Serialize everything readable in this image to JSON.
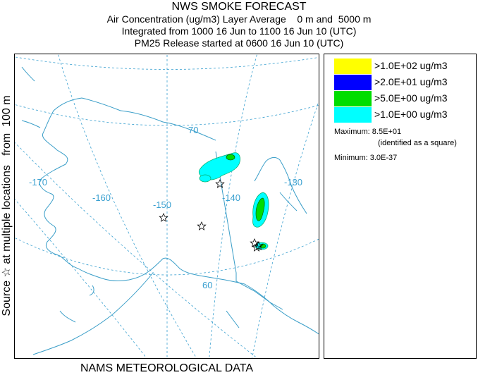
{
  "titles": {
    "main": "NWS SMOKE FORECAST",
    "line1": "Air Concentration (ug/m3) Layer Average    0 m and  5000 m",
    "line2": "Integrated from 1000 16 Jun to 1100 16 Jun 10 (UTC)",
    "line3": "PM25 Release started at 0600 16 Jun 10 (UTC)"
  },
  "side_label": "Source ☆ at multiple locations   from  100 m",
  "bottom_label": "NAMS METEOROLOGICAL DATA",
  "map": {
    "lon_labels": [
      "-170",
      "-160",
      "-150",
      "-140",
      "-130"
    ],
    "lat_labels": [
      "70",
      "60"
    ],
    "graticule_color": "#3aa0d0",
    "coast_color": "#3a9ec8"
  },
  "legend": {
    "items": [
      {
        "label": ">1.0E+02 ug/m3",
        "color": "#ffff00"
      },
      {
        "label": ">2.0E+01 ug/m3",
        "color": "#0000ff"
      },
      {
        "label": ">5.0E+00 ug/m3",
        "color": "#00dd00"
      },
      {
        "label": ">1.0E+00 ug/m3",
        "color": "#00ffff"
      }
    ],
    "maximum_label": "Maximum: 8.5E+01",
    "maximum_note": "(identified as a square)",
    "minimum_label": "Minimum: 3.0E-37"
  }
}
